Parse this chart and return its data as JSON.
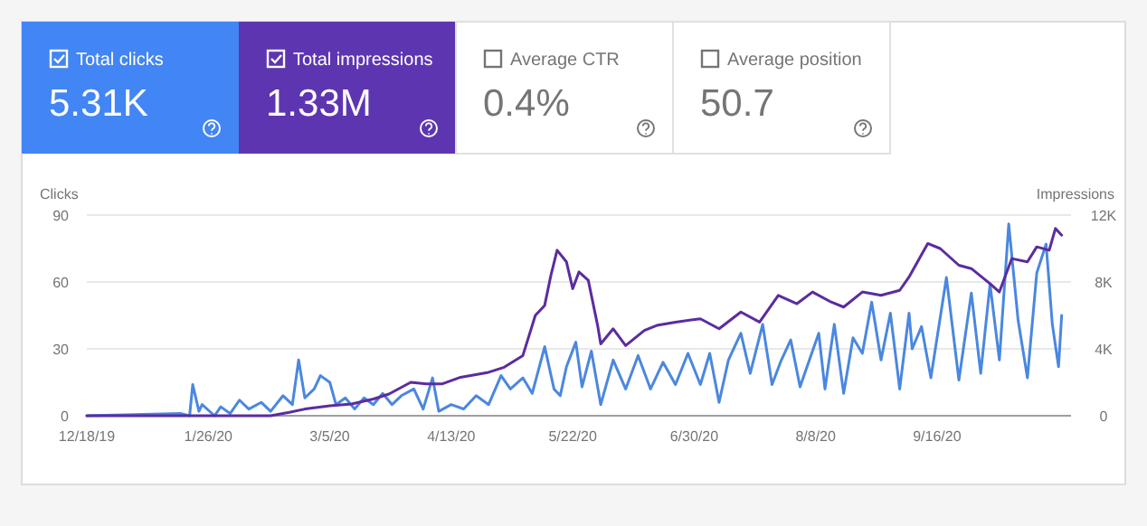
{
  "chart_data": [
    {
      "type": "other",
      "categories": [
        "Total clicks",
        "Total impressions",
        "Average CTR",
        "Average position"
      ],
      "value_labels": [
        "5.31K",
        "1.33M",
        "0.4%",
        "50.7"
      ],
      "colors": [
        "#4285f4",
        "#5e35b1",
        "#ffffff",
        "#ffffff"
      ]
    },
    {
      "type": "line",
      "ylabel": "Clicks",
      "y2label": "Impressions",
      "grid": "y",
      "marker": "none",
      "line_style": "solid",
      "xlim": [
        "2019-12-18",
        "2020-10-29"
      ],
      "xticks": [
        {
          "value": "2019-12-18",
          "label": "12/18/19"
        },
        {
          "value": "2020-01-26",
          "label": "1/26/20"
        },
        {
          "value": "2020-03-05",
          "label": "3/5/20"
        },
        {
          "value": "2020-04-13",
          "label": "4/13/20"
        },
        {
          "value": "2020-05-22",
          "label": "5/22/20"
        },
        {
          "value": "2020-06-30",
          "label": "6/30/20"
        },
        {
          "value": "2020-08-08",
          "label": "8/8/20"
        },
        {
          "value": "2020-09-16",
          "label": "9/16/20"
        }
      ],
      "ylim": [
        0,
        90
      ],
      "yticks": [
        0,
        30,
        60,
        90
      ],
      "y2lim": [
        0,
        12000
      ],
      "y2ticks": [
        0,
        {
          "value": 4000,
          "label": "4K"
        },
        {
          "value": 8000,
          "label": "8K"
        },
        {
          "value": 12000,
          "label": "12K"
        }
      ],
      "series": [
        {
          "color": "#4a87e0",
          "x": [
            "2019-12-18",
            "2020-01-17",
            "2020-01-20",
            "2020-01-21",
            "2020-01-23",
            "2020-01-24",
            "2020-01-28",
            "2020-01-30",
            "2020-02-02",
            "2020-02-05",
            "2020-02-08",
            "2020-02-12",
            "2020-02-15",
            "2020-02-19",
            "2020-02-22",
            "2020-02-24",
            "2020-02-26",
            "2020-02-29",
            "2020-03-02",
            "2020-03-05",
            "2020-03-07",
            "2020-03-10",
            "2020-03-13",
            "2020-03-16",
            "2020-03-19",
            "2020-03-22",
            "2020-03-25",
            "2020-03-28",
            "2020-04-01",
            "2020-04-04",
            "2020-04-07",
            "2020-04-09",
            "2020-04-13",
            "2020-04-17",
            "2020-04-21",
            "2020-04-25",
            "2020-04-29",
            "2020-05-02",
            "2020-05-06",
            "2020-05-09",
            "2020-05-13",
            "2020-05-16",
            "2020-05-18",
            "2020-05-20",
            "2020-05-23",
            "2020-05-25",
            "2020-05-28",
            "2020-05-31",
            "2020-06-04",
            "2020-06-08",
            "2020-06-12",
            "2020-06-16",
            "2020-06-20",
            "2020-06-24",
            "2020-06-28",
            "2020-07-02",
            "2020-07-05",
            "2020-07-08",
            "2020-07-11",
            "2020-07-15",
            "2020-07-18",
            "2020-07-22",
            "2020-07-25",
            "2020-07-28",
            "2020-07-31",
            "2020-08-03",
            "2020-08-06",
            "2020-08-09",
            "2020-08-11",
            "2020-08-14",
            "2020-08-17",
            "2020-08-20",
            "2020-08-23",
            "2020-08-26",
            "2020-08-29",
            "2020-09-01",
            "2020-09-04",
            "2020-09-07",
            "2020-09-08",
            "2020-09-11",
            "2020-09-14",
            "2020-09-19",
            "2020-09-23",
            "2020-09-27",
            "2020-09-30",
            "2020-10-03",
            "2020-10-06",
            "2020-10-09",
            "2020-10-12",
            "2020-10-15",
            "2020-10-18",
            "2020-10-21",
            "2020-10-23",
            "2020-10-25",
            "2020-10-26"
          ],
          "values": [
            0,
            1,
            0,
            14,
            2,
            5,
            0,
            4,
            1,
            7,
            3,
            6,
            2,
            9,
            5,
            25,
            8,
            12,
            18,
            15,
            5,
            8,
            3,
            8,
            5,
            10,
            5,
            9,
            12,
            3,
            17,
            2,
            5,
            3,
            9,
            5,
            18,
            12,
            17,
            10,
            31,
            12,
            9,
            22,
            33,
            13,
            29,
            5,
            25,
            12,
            27,
            12,
            24,
            14,
            28,
            14,
            28,
            6,
            25,
            37,
            19,
            41,
            14,
            25,
            34,
            13,
            25,
            37,
            12,
            41,
            10,
            35,
            28,
            51,
            25,
            46,
            12,
            46,
            30,
            40,
            17,
            62,
            16,
            55,
            19,
            59,
            25,
            86,
            43,
            17,
            64,
            77,
            41,
            22,
            45
          ]
        },
        {
          "color": "#5b2c9f",
          "axis": "y2",
          "x": [
            "2019-12-18",
            "2020-02-15",
            "2020-02-21",
            "2020-02-26",
            "2020-03-05",
            "2020-03-12",
            "2020-03-19",
            "2020-03-24",
            "2020-03-31",
            "2020-04-05",
            "2020-04-10",
            "2020-04-16",
            "2020-04-25",
            "2020-04-30",
            "2020-05-06",
            "2020-05-10",
            "2020-05-13",
            "2020-05-15",
            "2020-05-17",
            "2020-05-20",
            "2020-05-22",
            "2020-05-24",
            "2020-05-27",
            "2020-05-30",
            "2020-05-31",
            "2020-06-04",
            "2020-06-08",
            "2020-06-14",
            "2020-06-18",
            "2020-06-24",
            "2020-07-02",
            "2020-07-08",
            "2020-07-15",
            "2020-07-21",
            "2020-07-27",
            "2020-08-02",
            "2020-08-07",
            "2020-08-13",
            "2020-08-17",
            "2020-08-23",
            "2020-08-29",
            "2020-09-04",
            "2020-09-07",
            "2020-09-13",
            "2020-09-17",
            "2020-09-23",
            "2020-09-27",
            "2020-10-03",
            "2020-10-06",
            "2020-10-10",
            "2020-10-15",
            "2020-10-18",
            "2020-10-22",
            "2020-10-24",
            "2020-10-26"
          ],
          "values": [
            0,
            0,
            200,
            400,
            600,
            700,
            1000,
            1300,
            2000,
            1900,
            1900,
            2300,
            2600,
            2900,
            3600,
            6000,
            6600,
            8400,
            9900,
            9200,
            7600,
            8600,
            8100,
            5400,
            4300,
            5200,
            4200,
            5100,
            5400,
            5600,
            5800,
            5200,
            6200,
            5600,
            7200,
            6700,
            7400,
            6800,
            6500,
            7400,
            7200,
            7500,
            8300,
            10300,
            10000,
            9000,
            8800,
            7900,
            7400,
            9400,
            9200,
            10100,
            9900,
            11200,
            10800
          ]
        }
      ]
    }
  ]
}
